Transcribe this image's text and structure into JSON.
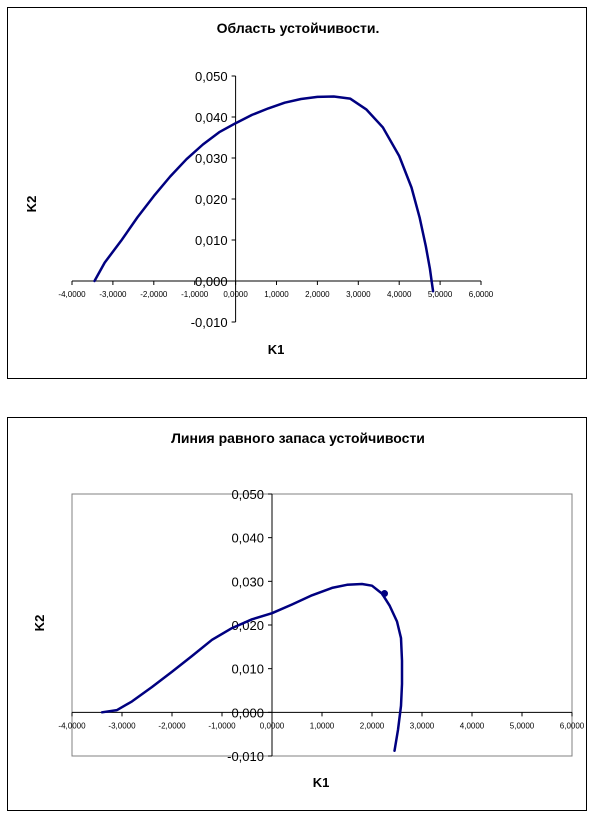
{
  "chart_data": [
    {
      "type": "line",
      "title": "Область устойчивости.",
      "xlabel": "K1",
      "ylabel": "K2",
      "xlim": [
        -4,
        6
      ],
      "ylim": [
        -0.01,
        0.05
      ],
      "x_ticks": [
        "-4,0000",
        "-3,0000",
        "-2,0000",
        "-1,0000",
        "0,0000",
        "1,0000",
        "2,0000",
        "3,0000",
        "4,0000",
        "5,0000",
        "6,0000"
      ],
      "y_ticks": [
        "-0,010",
        "0,000",
        "0,010",
        "0,020",
        "0,030",
        "0,040",
        "0,050"
      ],
      "plot_area_border": false,
      "line_color": "#000080",
      "series": [
        {
          "x": [
            -3.45,
            -3.2,
            -2.8,
            -2.4,
            -2.0,
            -1.6,
            -1.2,
            -0.8,
            -0.4,
            0.0,
            0.4,
            0.8,
            1.2,
            1.6,
            2.0,
            2.4,
            2.8,
            3.2,
            3.6,
            4.0,
            4.3,
            4.5,
            4.65,
            4.75,
            4.8,
            4.83
          ],
          "y": [
            0.0,
            0.0045,
            0.0098,
            0.0155,
            0.0207,
            0.0255,
            0.0297,
            0.0333,
            0.0363,
            0.0385,
            0.0405,
            0.0421,
            0.0435,
            0.0444,
            0.0449,
            0.045,
            0.0445,
            0.0418,
            0.0375,
            0.0305,
            0.0228,
            0.0155,
            0.0085,
            0.003,
            -0.0005,
            -0.0025
          ]
        }
      ]
    },
    {
      "type": "line",
      "title": "Линия равного запаса устойчивости",
      "xlabel": "K1",
      "ylabel": "K2",
      "xlim": [
        -4,
        6
      ],
      "ylim": [
        -0.01,
        0.05
      ],
      "x_ticks": [
        "-4,0000",
        "-3,0000",
        "-2,0000",
        "-1,0000",
        "0,0000",
        "1,0000",
        "2,0000",
        "3,0000",
        "4,0000",
        "5,0000",
        "6,0000"
      ],
      "y_ticks": [
        "-0,010",
        "0,000",
        "0,010",
        "0,020",
        "0,030",
        "0,040",
        "0,050"
      ],
      "plot_area_border": true,
      "line_color": "#000080",
      "series": [
        {
          "x": [
            -3.4,
            -3.1,
            -2.8,
            -2.4,
            -2.0,
            -1.6,
            -1.2,
            -0.8,
            -0.4,
            0.0,
            0.4,
            0.8,
            1.2,
            1.5,
            1.8,
            2.0,
            2.2,
            2.35,
            2.5,
            2.58,
            2.6,
            2.6,
            2.58,
            2.52,
            2.45
          ],
          "y": [
            0.0,
            0.0005,
            0.0025,
            0.0058,
            0.0093,
            0.0129,
            0.0166,
            0.0193,
            0.0213,
            0.0227,
            0.0247,
            0.0268,
            0.0285,
            0.0292,
            0.0294,
            0.029,
            0.0272,
            0.0245,
            0.0208,
            0.017,
            0.0118,
            0.0065,
            0.0015,
            -0.004,
            -0.0088
          ]
        }
      ],
      "markers": [
        {
          "x": 2.25,
          "y": 0.0272
        }
      ]
    }
  ]
}
